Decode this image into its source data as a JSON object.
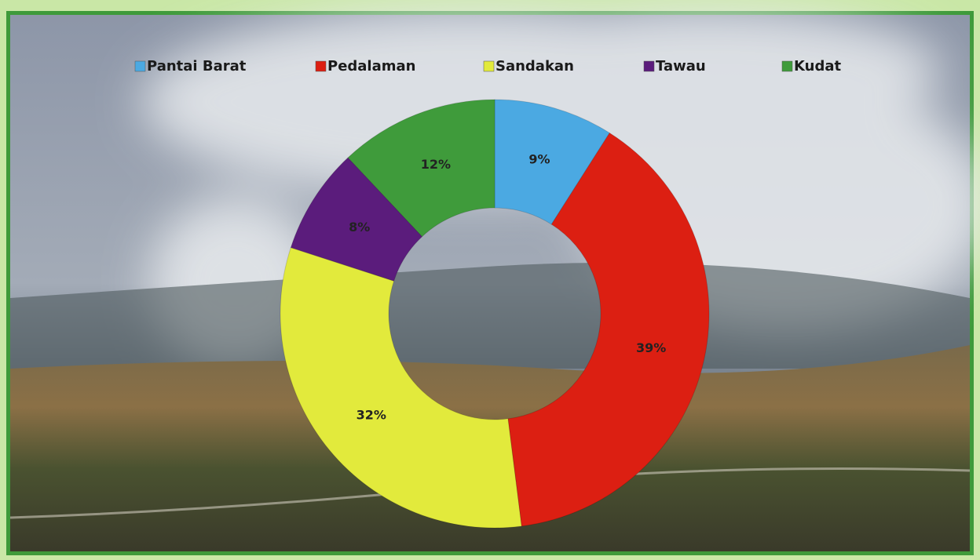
{
  "chart_data": {
    "type": "donut",
    "categories": [
      "Pantai Barat",
      "Pedalaman",
      "Sandakan",
      "Tawau",
      "Kudat"
    ],
    "values": [
      9,
      39,
      32,
      8,
      12
    ],
    "value_labels": [
      "9%",
      "39%",
      "32%",
      "8%",
      "12%"
    ],
    "colors": [
      "#4ba9e2",
      "#dc1f12",
      "#e2ea3c",
      "#5b1c7c",
      "#3f9b3b"
    ],
    "legend": "top"
  }
}
